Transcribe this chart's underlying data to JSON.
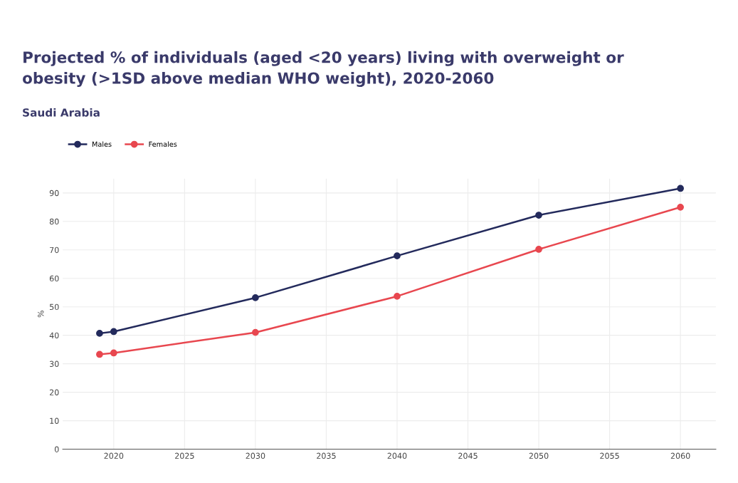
{
  "chart_data": {
    "type": "line",
    "title": "Projected % of individuals (aged <20 years) living with overweight or\nobesity (>1SD above median WHO weight), 2020-2060",
    "subtitle": "Saudi Arabia",
    "ylabel": "%",
    "x": [
      2019,
      2020,
      2030,
      2040,
      2050,
      2060
    ],
    "series": [
      {
        "name": "Males",
        "color": "#232a5c",
        "values": [
          40.7,
          41.3,
          53.2,
          67.9,
          82.2,
          91.6
        ]
      },
      {
        "name": "Females",
        "color": "#e8474f",
        "values": [
          33.3,
          33.8,
          41.0,
          53.7,
          70.2,
          85.0
        ]
      }
    ],
    "xlim": [
      2016.4,
      2062.5
    ],
    "xticks": [
      2020,
      2025,
      2030,
      2035,
      2040,
      2045,
      2050,
      2055,
      2060
    ],
    "ylim": [
      0,
      95
    ],
    "yticks": [
      0,
      10,
      20,
      30,
      40,
      50,
      60,
      70,
      80,
      90
    ],
    "grid": true,
    "legend": "top left",
    "marker": "circle",
    "line_style": "solid"
  }
}
